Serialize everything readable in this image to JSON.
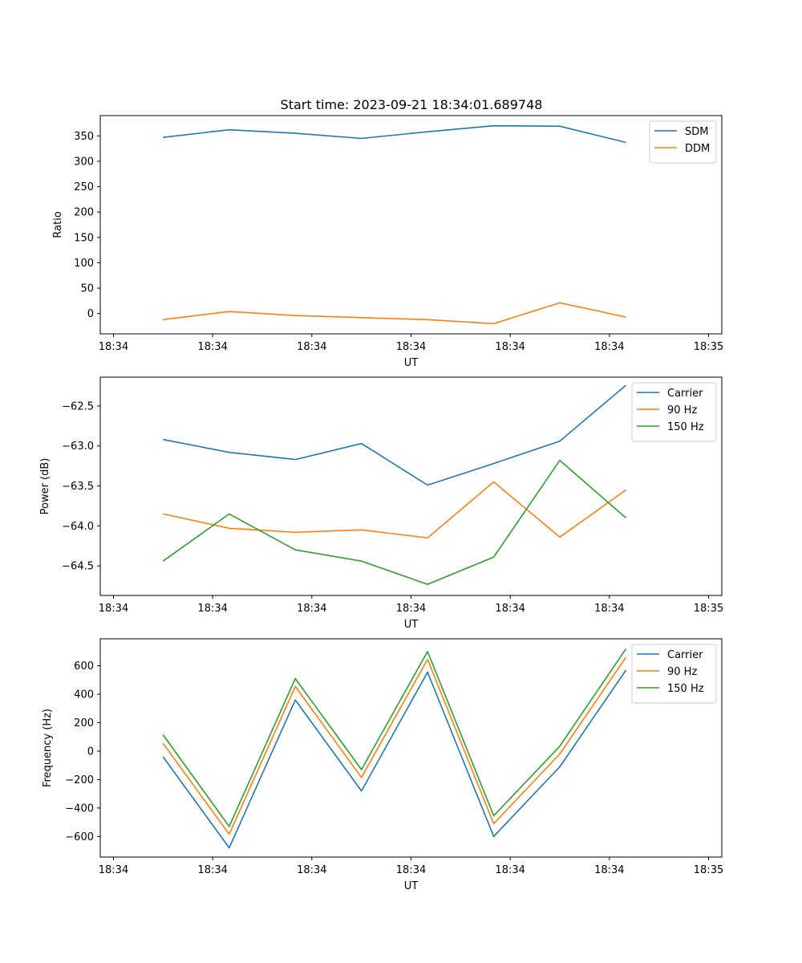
{
  "figure_title": "Start time: 2023-09-21 18:34:01.689748",
  "colors": {
    "blue": "#1f77b4",
    "orange": "#ff7f0e",
    "green": "#2ca02c"
  },
  "chart_data": [
    {
      "type": "line",
      "title": "Start time: 2023-09-21 18:34:01.689748",
      "xlabel": "UT",
      "ylabel": "Ratio",
      "x": [
        0.75,
        1.75,
        2.75,
        3.75,
        4.75,
        5.75,
        6.75,
        7.75
      ],
      "xlim": [
        -0.2,
        9.2
      ],
      "xticks": [
        0,
        1.5,
        3,
        4.5,
        6,
        7.5,
        9
      ],
      "xtick_labels": [
        "18:34",
        "18:34",
        "18:34",
        "18:34",
        "18:34",
        "18:34",
        "18:35"
      ],
      "ylim": [
        -40,
        390
      ],
      "yticks": [
        0,
        50,
        100,
        150,
        200,
        250,
        300,
        350
      ],
      "ytick_labels": [
        "0",
        "50",
        "100",
        "150",
        "200",
        "250",
        "300",
        "350"
      ],
      "legend": "top-right",
      "series": [
        {
          "name": "SDM",
          "color": "#1f77b4",
          "values": [
            347,
            362,
            355,
            345,
            358,
            370,
            369,
            337
          ]
        },
        {
          "name": "DDM",
          "color": "#ff7f0e",
          "values": [
            -12,
            4,
            -4,
            -8,
            -12,
            -20,
            21,
            -7
          ]
        }
      ]
    },
    {
      "type": "line",
      "title": "",
      "xlabel": "UT",
      "ylabel": "Power (dB)",
      "x": [
        0.75,
        1.75,
        2.75,
        3.75,
        4.75,
        5.75,
        6.75,
        7.75
      ],
      "xlim": [
        -0.2,
        9.2
      ],
      "xticks": [
        0,
        1.5,
        3,
        4.5,
        6,
        7.5,
        9
      ],
      "xtick_labels": [
        "18:34",
        "18:34",
        "18:34",
        "18:34",
        "18:34",
        "18:34",
        "18:35"
      ],
      "ylim": [
        -64.87,
        -62.14
      ],
      "yticks": [
        -64.5,
        -64.0,
        -63.5,
        -63.0,
        -62.5
      ],
      "ytick_labels": [
        "−64.5",
        "−64.0",
        "−63.5",
        "−63.0",
        "−62.5"
      ],
      "legend": "top-right",
      "series": [
        {
          "name": "Carrier",
          "color": "#1f77b4",
          "values": [
            -62.92,
            -63.08,
            -63.17,
            -62.97,
            -63.49,
            -63.22,
            -62.94,
            -62.24
          ]
        },
        {
          "name": "90 Hz",
          "color": "#ff7f0e",
          "values": [
            -63.85,
            -64.03,
            -64.08,
            -64.05,
            -64.15,
            -63.45,
            -64.14,
            -63.55
          ]
        },
        {
          "name": "150 Hz",
          "color": "#2ca02c",
          "values": [
            -64.44,
            -63.85,
            -64.3,
            -64.44,
            -64.73,
            -64.39,
            -63.18,
            -63.9
          ]
        }
      ]
    },
    {
      "type": "line",
      "title": "",
      "xlabel": "UT",
      "ylabel": "Frequency (Hz)",
      "x": [
        0.75,
        1.75,
        2.75,
        3.75,
        4.75,
        5.75,
        6.75,
        7.75
      ],
      "xlim": [
        -0.2,
        9.2
      ],
      "xticks": [
        0,
        1.5,
        3,
        4.5,
        6,
        7.5,
        9
      ],
      "xtick_labels": [
        "18:34",
        "18:34",
        "18:34",
        "18:34",
        "18:34",
        "18:34",
        "18:35"
      ],
      "ylim": [
        -745,
        790
      ],
      "yticks": [
        -600,
        -400,
        -200,
        0,
        200,
        400,
        600
      ],
      "ytick_labels": [
        "−600",
        "−400",
        "−200",
        "0",
        "200",
        "400",
        "600"
      ],
      "legend": "top-right",
      "series": [
        {
          "name": "Carrier",
          "color": "#1f77b4",
          "values": [
            -40,
            -680,
            360,
            -280,
            555,
            -600,
            -110,
            570
          ]
        },
        {
          "name": "90 Hz",
          "color": "#ff7f0e",
          "values": [
            55,
            -585,
            455,
            -185,
            645,
            -510,
            -20,
            660
          ]
        },
        {
          "name": "150 Hz",
          "color": "#2ca02c",
          "values": [
            115,
            -530,
            510,
            -130,
            700,
            -455,
            35,
            720
          ]
        }
      ]
    }
  ]
}
